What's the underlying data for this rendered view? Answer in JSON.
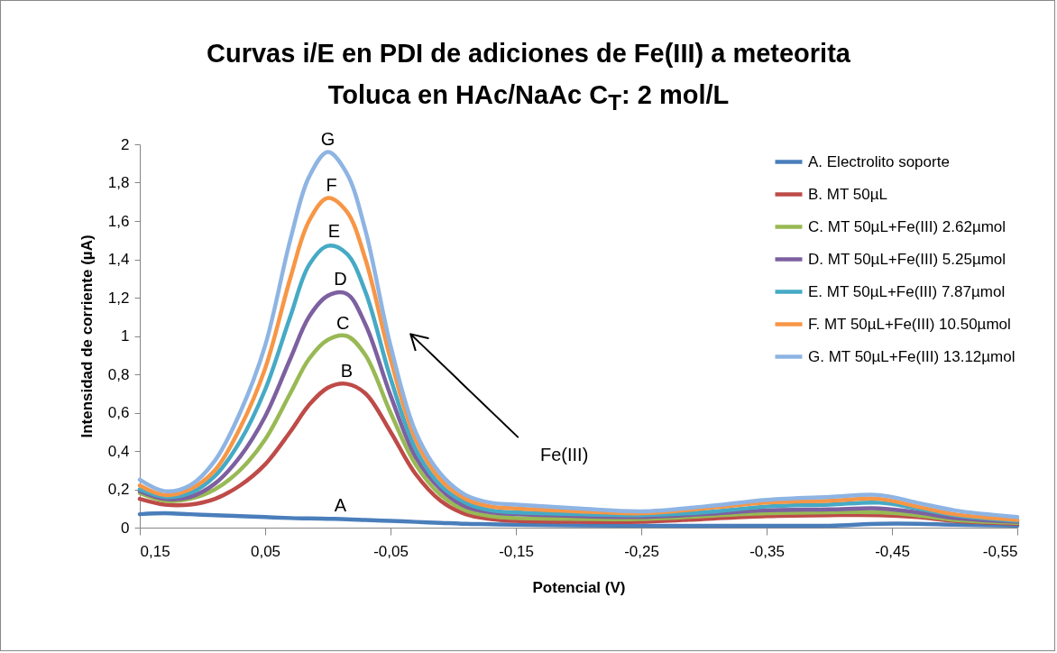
{
  "chart_data": {
    "type": "line",
    "title": "Curvas i/E en PDI de adiciones de Fe(III) a meteorita\nToluca en HAc/NaAc C$_{T}$: 2 mol/L",
    "xlabel": "Potencial (V)",
    "ylabel": "Intensidad de corriente (µA)",
    "x": [
      0.15,
      0.13,
      0.11,
      0.09,
      0.07,
      0.05,
      0.03,
      0.015,
      0,
      -0.015,
      -0.03,
      -0.05,
      -0.07,
      -0.09,
      -0.11,
      -0.13,
      -0.15,
      -0.2,
      -0.25,
      -0.3,
      -0.35,
      -0.4,
      -0.44,
      -0.47,
      -0.5,
      -0.55
    ],
    "xlim": [
      0.15,
      -0.55
    ],
    "xticks": [
      {
        "value": 0.15,
        "label": "0,15"
      },
      {
        "value": 0.05,
        "label": "0,05"
      },
      {
        "value": -0.05,
        "label": "-0,05"
      },
      {
        "value": -0.15,
        "label": "-0,15"
      },
      {
        "value": -0.25,
        "label": "-0,25"
      },
      {
        "value": -0.35,
        "label": "-0,35"
      },
      {
        "value": -0.45,
        "label": "-0,45"
      },
      {
        "value": -0.55,
        "label": "-0,55"
      }
    ],
    "ylim": [
      0,
      2
    ],
    "yticks": [
      0,
      {
        "value": 0.2,
        "label": "0,2"
      },
      {
        "value": 0.4,
        "label": "0,4"
      },
      {
        "value": 0.6,
        "label": "0,6"
      },
      {
        "value": 0.8,
        "label": "0,8"
      },
      1,
      {
        "value": 1.2,
        "label": "1,2"
      },
      {
        "value": 1.4,
        "label": "1,4"
      },
      {
        "value": 1.6,
        "label": "1,6"
      },
      {
        "value": 1.8,
        "label": "1,8"
      },
      2
    ],
    "legend": "top right",
    "series": [
      {
        "name": "A. Electrolito soporte",
        "color": "#4a7ebb",
        "values": [
          0.07,
          0.075,
          0.07,
          0.065,
          0.06,
          0.055,
          0.05,
          0.048,
          0.046,
          0.044,
          0.04,
          0.035,
          0.03,
          0.025,
          0.02,
          0.018,
          0.015,
          0.012,
          0.01,
          0.01,
          0.01,
          0.01,
          0.02,
          0.02,
          0.015,
          0.01
        ]
      },
      {
        "name": "B. MT 50µL",
        "color": "#be4b48",
        "values": [
          0.15,
          0.12,
          0.12,
          0.15,
          0.22,
          0.33,
          0.5,
          0.64,
          0.73,
          0.75,
          0.7,
          0.5,
          0.28,
          0.14,
          0.07,
          0.045,
          0.035,
          0.03,
          0.03,
          0.045,
          0.06,
          0.065,
          0.065,
          0.055,
          0.035,
          0.02
        ]
      },
      {
        "name": "C. MT 50µL+Fe(III) 2.62µmol",
        "color": "#98b954",
        "values": [
          0.18,
          0.14,
          0.15,
          0.2,
          0.3,
          0.46,
          0.7,
          0.88,
          0.98,
          1.0,
          0.9,
          0.6,
          0.33,
          0.17,
          0.09,
          0.06,
          0.05,
          0.045,
          0.045,
          0.06,
          0.075,
          0.08,
          0.08,
          0.065,
          0.04,
          0.025
        ]
      },
      {
        "name": "D. MT 50µL+Fe(III) 5.25µmol",
        "color": "#7d60a0",
        "values": [
          0.19,
          0.15,
          0.16,
          0.23,
          0.37,
          0.58,
          0.88,
          1.1,
          1.21,
          1.22,
          1.06,
          0.69,
          0.37,
          0.2,
          0.11,
          0.08,
          0.07,
          0.06,
          0.055,
          0.07,
          0.09,
          0.095,
          0.1,
          0.08,
          0.05,
          0.03
        ]
      },
      {
        "name": "E. MT 50µL+Fe(III) 7.87µmol",
        "color": "#46aac5",
        "values": [
          0.2,
          0.16,
          0.18,
          0.27,
          0.45,
          0.72,
          1.1,
          1.37,
          1.47,
          1.43,
          1.23,
          0.78,
          0.41,
          0.22,
          0.13,
          0.09,
          0.08,
          0.07,
          0.065,
          0.08,
          0.11,
          0.12,
          0.13,
          0.1,
          0.065,
          0.035
        ]
      },
      {
        "name": "F. MT 50µL+Fe(III) 10.50µmol",
        "color": "#f79646",
        "values": [
          0.22,
          0.17,
          0.2,
          0.3,
          0.52,
          0.83,
          1.3,
          1.6,
          1.72,
          1.65,
          1.4,
          0.88,
          0.46,
          0.25,
          0.15,
          0.11,
          0.1,
          0.085,
          0.075,
          0.1,
          0.13,
          0.14,
          0.15,
          0.11,
          0.07,
          0.04
        ]
      },
      {
        "name": "G. MT 50µL+Fe(III) 13.12µmol",
        "color": "#8eb4e3",
        "values": [
          0.25,
          0.19,
          0.22,
          0.35,
          0.6,
          0.95,
          1.5,
          1.83,
          1.96,
          1.85,
          1.55,
          0.95,
          0.5,
          0.28,
          0.17,
          0.13,
          0.12,
          0.1,
          0.085,
          0.11,
          0.145,
          0.16,
          0.17,
          0.13,
          0.09,
          0.055
        ]
      }
    ],
    "annotations": [
      {
        "text": "A",
        "x": -0.01,
        "y": 0.046
      },
      {
        "text": "B",
        "x": -0.015,
        "y": 0.75
      },
      {
        "text": "C",
        "x": -0.012,
        "y": 1.0
      },
      {
        "text": "D",
        "x": -0.01,
        "y": 1.23
      },
      {
        "text": "E",
        "x": -0.005,
        "y": 1.48
      },
      {
        "text": "F",
        "x": -0.003,
        "y": 1.72
      },
      {
        "text": "G",
        "x": 0,
        "y": 1.96
      },
      "Fe(III)"
    ]
  }
}
